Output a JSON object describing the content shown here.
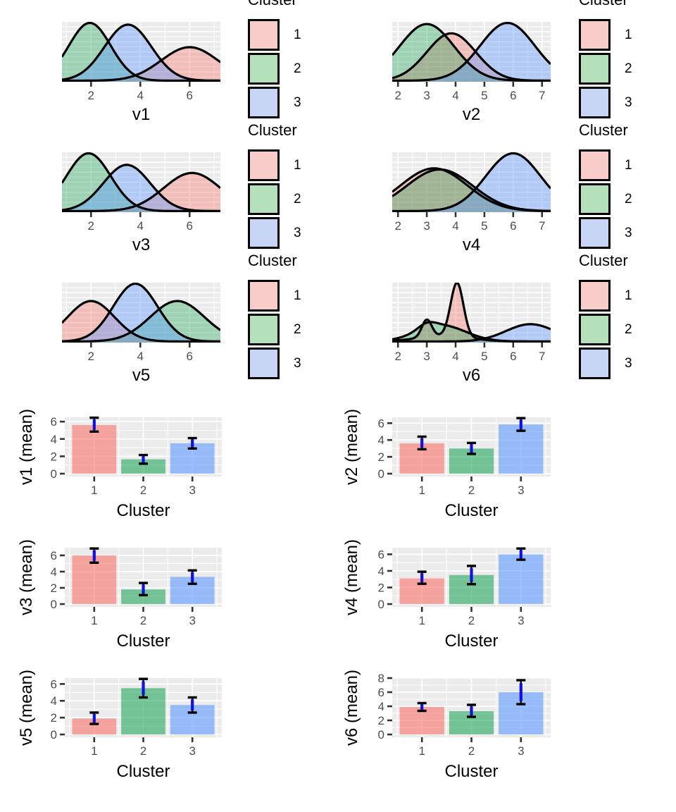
{
  "figure": {
    "description": "Cluster profile plots: per-variable density curves by cluster and cluster mean bar charts with error bars"
  },
  "legend": {
    "title": "Cluster",
    "labels": [
      "1",
      "2",
      "3"
    ]
  },
  "colors": {
    "panel_bg": "#EBEBEB",
    "grid": "#FFFFFF",
    "axis_text": "#4D4D4D",
    "tick": "#333333",
    "title": "#000000",
    "curve_stroke": "#000000",
    "density_fill": [
      "rgba(248,118,109,0.38)",
      "rgba(16,160,80,0.35)",
      "rgba(97,156,255,0.42)"
    ],
    "bar_fill": [
      "rgba(248,118,109,0.62)",
      "rgba(16,160,80,0.55)",
      "rgba(97,156,255,0.62)"
    ],
    "swatch_fill": [
      "#F8CCC8",
      "#B5E0BC",
      "#C7D6F4"
    ],
    "error_blue": "#1212E0",
    "error_black": "#000000"
  },
  "chart_data": [
    {
      "type": "area",
      "title": "v1",
      "xlabel": "v1",
      "xlim": [
        0.82,
        7.25
      ],
      "x_ticks": [
        2,
        4,
        6
      ],
      "legend_position": "right",
      "series": [
        {
          "name": "1",
          "components": [
            {
              "mu": 6.0,
              "sd": 1.15,
              "h": 0.58
            }
          ]
        },
        {
          "name": "2",
          "components": [
            {
              "mu": 1.95,
              "sd": 0.85,
              "h": 1.0
            }
          ]
        },
        {
          "name": "3",
          "components": [
            {
              "mu": 3.5,
              "sd": 0.95,
              "h": 0.97
            }
          ]
        }
      ]
    },
    {
      "type": "area",
      "title": "v2",
      "xlabel": "v2",
      "xlim": [
        1.8,
        7.3
      ],
      "x_ticks": [
        2,
        3,
        4,
        5,
        6,
        7
      ],
      "legend_position": "right",
      "series": [
        {
          "name": "1",
          "components": [
            {
              "mu": 3.85,
              "sd": 0.85,
              "h": 0.82
            }
          ]
        },
        {
          "name": "2",
          "components": [
            {
              "mu": 3.0,
              "sd": 0.95,
              "h": 0.98
            }
          ]
        },
        {
          "name": "3",
          "components": [
            {
              "mu": 5.8,
              "sd": 0.95,
              "h": 1.0
            }
          ]
        }
      ]
    },
    {
      "type": "area",
      "title": "v3",
      "xlabel": "v3",
      "xlim": [
        0.82,
        7.25
      ],
      "x_ticks": [
        2,
        4,
        6
      ],
      "legend_position": "right",
      "series": [
        {
          "name": "1",
          "components": [
            {
              "mu": 6.1,
              "sd": 1.15,
              "h": 0.66
            }
          ]
        },
        {
          "name": "2",
          "components": [
            {
              "mu": 1.9,
              "sd": 0.9,
              "h": 1.0
            }
          ]
        },
        {
          "name": "3",
          "components": [
            {
              "mu": 3.45,
              "sd": 0.95,
              "h": 0.8
            }
          ]
        }
      ]
    },
    {
      "type": "area",
      "title": "v4",
      "xlabel": "v4",
      "xlim": [
        1.8,
        7.3
      ],
      "x_ticks": [
        2,
        3,
        4,
        5,
        6,
        7
      ],
      "legend_position": "right",
      "series": [
        {
          "name": "1",
          "components": [
            {
              "mu": 3.25,
              "sd": 1.15,
              "h": 0.74
            }
          ]
        },
        {
          "name": "2",
          "components": [
            {
              "mu": 3.45,
              "sd": 1.15,
              "h": 0.72
            }
          ]
        },
        {
          "name": "3",
          "components": [
            {
              "mu": 6.0,
              "sd": 0.95,
              "h": 1.0
            }
          ]
        }
      ]
    },
    {
      "type": "area",
      "title": "v5",
      "xlabel": "v5",
      "xlim": [
        0.82,
        7.25
      ],
      "x_ticks": [
        2,
        4,
        6
      ],
      "legend_position": "right",
      "series": [
        {
          "name": "1",
          "components": [
            {
              "mu": 2.0,
              "sd": 0.95,
              "h": 0.7
            }
          ]
        },
        {
          "name": "2",
          "components": [
            {
              "mu": 5.5,
              "sd": 1.1,
              "h": 0.7
            }
          ]
        },
        {
          "name": "3",
          "components": [
            {
              "mu": 3.8,
              "sd": 0.9,
              "h": 1.0
            }
          ]
        }
      ]
    },
    {
      "type": "area",
      "title": "v6",
      "xlabel": "v6",
      "xlim": [
        1.8,
        7.3
      ],
      "x_ticks": [
        2,
        3,
        4,
        5,
        6,
        7
      ],
      "legend_position": "right",
      "series": [
        {
          "name": "1",
          "components": [
            {
              "mu": 3.0,
              "sd": 0.17,
              "h": 0.3
            },
            {
              "mu": 4.05,
              "sd": 0.22,
              "h": 0.93
            },
            {
              "mu": 3.6,
              "sd": 0.9,
              "h": 0.1
            }
          ]
        },
        {
          "name": "2",
          "components": [
            {
              "mu": 3.5,
              "sd": 0.85,
              "h": 0.28
            },
            {
              "mu": 3.0,
              "sd": 0.3,
              "h": 0.09
            }
          ]
        },
        {
          "name": "3",
          "components": [
            {
              "mu": 6.6,
              "sd": 0.85,
              "h": 0.3
            }
          ]
        }
      ]
    },
    {
      "type": "bar",
      "title": "v1 (mean)",
      "xlabel": "Cluster",
      "ylabel": "v1 (mean)",
      "categories": [
        "1",
        "2",
        "3"
      ],
      "values": [
        5.6,
        1.65,
        3.5
      ],
      "error_low": [
        4.85,
        1.15,
        2.9
      ],
      "error_high": [
        6.45,
        2.15,
        4.1
      ],
      "y_ticks": [
        0,
        2,
        4,
        6
      ],
      "ylim": [
        0,
        6.5
      ],
      "legend_position": "none"
    },
    {
      "type": "bar",
      "title": "v2 (mean)",
      "xlabel": "Cluster",
      "ylabel": "v2 (mean)",
      "categories": [
        "1",
        "2",
        "3"
      ],
      "values": [
        3.6,
        3.0,
        5.85
      ],
      "error_low": [
        2.9,
        2.35,
        5.1
      ],
      "error_high": [
        4.4,
        3.65,
        6.6
      ],
      "y_ticks": [
        0,
        2,
        4,
        6
      ],
      "ylim": [
        0,
        6.7
      ],
      "legend_position": "none"
    },
    {
      "type": "bar",
      "title": "v3 (mean)",
      "xlabel": "Cluster",
      "ylabel": "v3 (mean)",
      "categories": [
        "1",
        "2",
        "3"
      ],
      "values": [
        6.0,
        1.8,
        3.35
      ],
      "error_low": [
        5.1,
        1.1,
        2.5
      ],
      "error_high": [
        6.85,
        2.6,
        4.15
      ],
      "y_ticks": [
        0,
        2,
        4,
        6
      ],
      "ylim": [
        0,
        6.95
      ],
      "legend_position": "none"
    },
    {
      "type": "bar",
      "title": "v4 (mean)",
      "xlabel": "Cluster",
      "ylabel": "v4 (mean)",
      "categories": [
        "1",
        "2",
        "3"
      ],
      "values": [
        3.1,
        3.5,
        6.0
      ],
      "error_low": [
        2.45,
        2.4,
        5.35
      ],
      "error_high": [
        3.9,
        4.6,
        6.7
      ],
      "y_ticks": [
        0,
        2,
        4,
        6
      ],
      "ylim": [
        0,
        6.8
      ],
      "legend_position": "none"
    },
    {
      "type": "bar",
      "title": "v5 (mean)",
      "xlabel": "Cluster",
      "ylabel": "v5 (mean)",
      "categories": [
        "1",
        "2",
        "3"
      ],
      "values": [
        1.9,
        5.5,
        3.5
      ],
      "error_low": [
        1.25,
        4.4,
        2.6
      ],
      "error_high": [
        2.6,
        6.6,
        4.4
      ],
      "y_ticks": [
        0,
        2,
        4,
        6
      ],
      "ylim": [
        0,
        6.7
      ],
      "legend_position": "none"
    },
    {
      "type": "bar",
      "title": "v6 (mean)",
      "xlabel": "Cluster",
      "ylabel": "v6 (mean)",
      "categories": [
        "1",
        "2",
        "3"
      ],
      "values": [
        3.9,
        3.3,
        6.0
      ],
      "error_low": [
        3.35,
        2.5,
        4.3
      ],
      "error_high": [
        4.45,
        4.2,
        7.7
      ],
      "y_ticks": [
        0,
        2,
        4,
        6,
        8
      ],
      "ylim": [
        0,
        8.0
      ],
      "legend_position": "none"
    }
  ]
}
